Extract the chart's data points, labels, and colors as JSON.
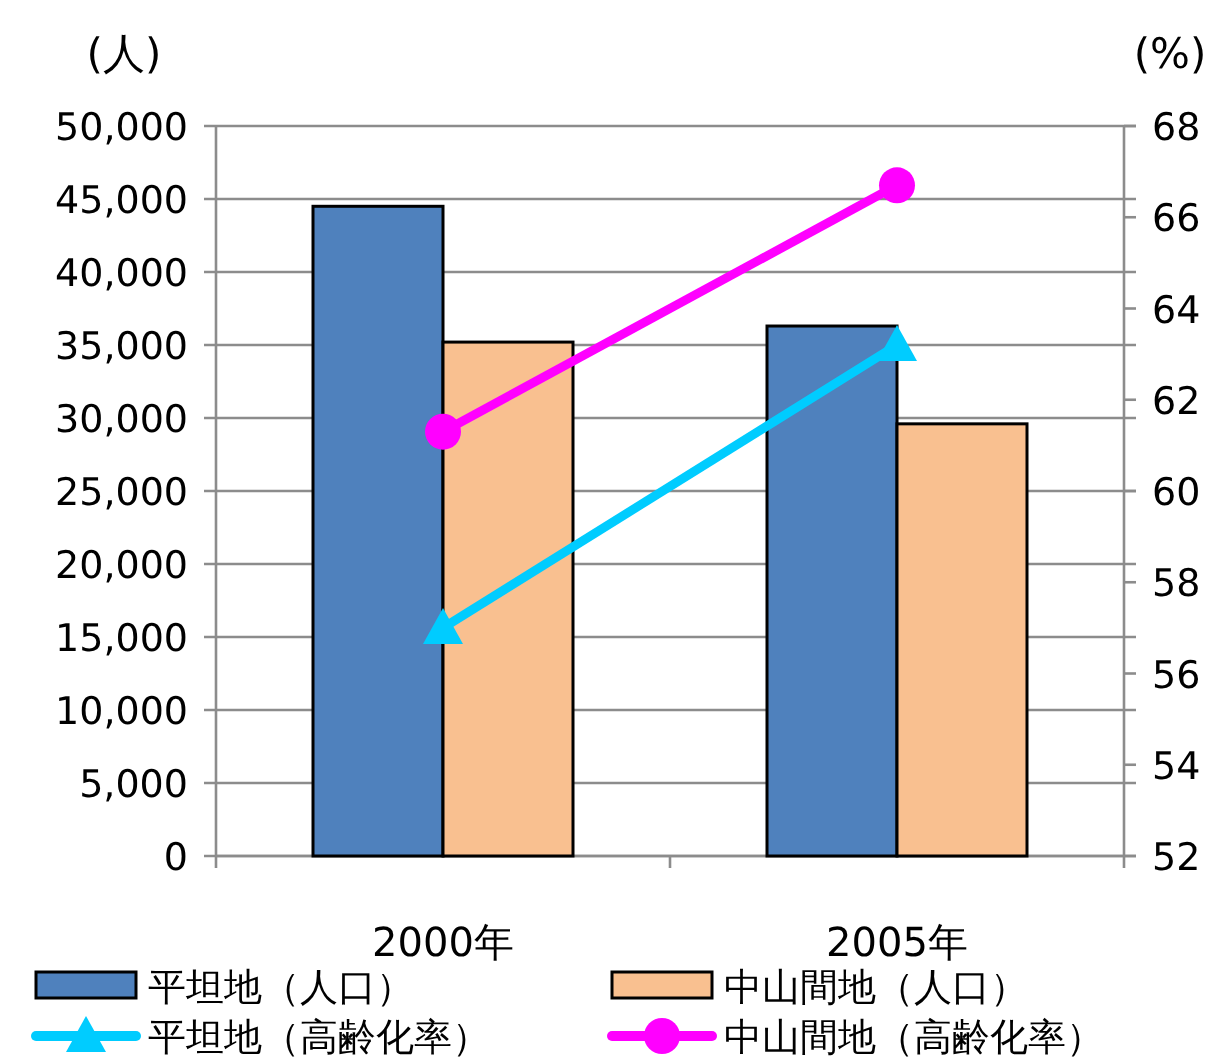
{
  "chart_data": {
    "type": "bar",
    "ylabel": "(人)",
    "y2label": "(%)",
    "categories": [
      "2000年",
      "2005年"
    ],
    "series": [
      {
        "name": "平坦地（人口）",
        "color": "#4f81bd",
        "values": [
          44500,
          36300
        ]
      },
      {
        "name": "中山間地（人口）",
        "color": "#f9c090",
        "values": [
          35200,
          29600
        ]
      },
      {
        "name": "平坦地（高齢化率）",
        "color": "#00ccff",
        "type": "line",
        "axis": "y2",
        "marker": "triangle",
        "values": [
          57.0,
          63.2
        ]
      },
      {
        "name": "中山間地（高齢化率）",
        "color": "#ff00ff",
        "type": "line",
        "axis": "y2",
        "marker": "circle",
        "values": [
          61.3,
          66.7
        ]
      }
    ],
    "ylim": [
      0,
      50000
    ],
    "yticks": [
      {
        "value": 0,
        "label": "0"
      },
      {
        "value": 5000,
        "label": "5,000"
      },
      {
        "value": 10000,
        "label": "10,000"
      },
      {
        "value": 15000,
        "label": "15,000"
      },
      {
        "value": 20000,
        "label": "20,000"
      },
      {
        "value": 25000,
        "label": "25,000"
      },
      {
        "value": 30000,
        "label": "30,000"
      },
      {
        "value": 35000,
        "label": "35,000"
      },
      {
        "value": 40000,
        "label": "40,000"
      },
      {
        "value": 45000,
        "label": "45,000"
      },
      {
        "value": 50000,
        "label": "50,000"
      }
    ],
    "y2lim": [
      52,
      68
    ],
    "y2ticks": [
      52,
      54,
      56,
      58,
      60,
      62,
      64,
      66,
      68
    ],
    "grid": "y",
    "legend": "bottom"
  }
}
